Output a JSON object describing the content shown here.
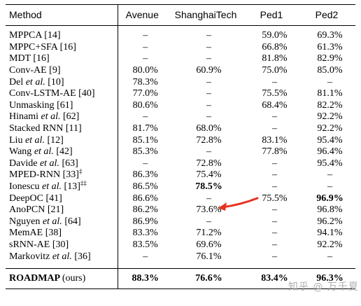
{
  "header": {
    "method": "Method",
    "avenue": "Avenue",
    "shanghaitech": "ShanghaiTech",
    "ped1": "Ped1",
    "ped2": "Ped2"
  },
  "rows": [
    {
      "name": "MPPCA",
      "etal": "",
      "ref": "[14]",
      "sup": "",
      "avenue": "–",
      "shanghaitech": "–",
      "ped1": "59.0%",
      "ped2": "69.3%"
    },
    {
      "name": "MPPC+SFA",
      "etal": "",
      "ref": "[16]",
      "sup": "",
      "avenue": "–",
      "shanghaitech": "–",
      "ped1": "66.8%",
      "ped2": "61.3%"
    },
    {
      "name": "MDT",
      "etal": "",
      "ref": "[16]",
      "sup": "",
      "avenue": "–",
      "shanghaitech": "–",
      "ped1": "81.8%",
      "ped2": "82.9%"
    },
    {
      "name": "Conv-AE",
      "etal": "",
      "ref": "[9]",
      "sup": "",
      "avenue": "80.0%",
      "shanghaitech": "60.9%",
      "ped1": "75.0%",
      "ped2": "85.0%"
    },
    {
      "name": "Del",
      "etal": "et al.",
      "ref": "[10]",
      "sup": "",
      "avenue": "78.3%",
      "shanghaitech": "–",
      "ped1": "–",
      "ped2": "–"
    },
    {
      "name": "Conv-LSTM-AE",
      "etal": "",
      "ref": "[40]",
      "sup": "",
      "avenue": "77.0%",
      "shanghaitech": "–",
      "ped1": "75.5%",
      "ped2": "81.1%"
    },
    {
      "name": "Unmasking",
      "etal": "",
      "ref": "[61]",
      "sup": "",
      "avenue": "80.6%",
      "shanghaitech": "–",
      "ped1": "68.4%",
      "ped2": "82.2%"
    },
    {
      "name": "Hinami",
      "etal": "et al.",
      "ref": "[62]",
      "sup": "",
      "avenue": "–",
      "shanghaitech": "–",
      "ped1": "–",
      "ped2": "92.2%"
    },
    {
      "name": "Stacked RNN",
      "etal": "",
      "ref": "[11]",
      "sup": "",
      "avenue": "81.7%",
      "shanghaitech": "68.0%",
      "ped1": "–",
      "ped2": "92.2%"
    },
    {
      "name": "Liu",
      "etal": "et al.",
      "ref": "[12]",
      "sup": "",
      "avenue": "85.1%",
      "shanghaitech": "72.8%",
      "ped1": "83.1%",
      "ped2": "95.4%"
    },
    {
      "name": "Wang",
      "etal": "et al.",
      "ref": "[42]",
      "sup": "",
      "avenue": "85.3%",
      "shanghaitech": "–",
      "ped1": "77.8%",
      "ped2": "96.4%"
    },
    {
      "name": "Davide",
      "etal": "et al.",
      "ref": "[63]",
      "sup": "",
      "avenue": "–",
      "shanghaitech": "72.8%",
      "ped1": "–",
      "ped2": "95.4%"
    },
    {
      "name": "MPED-RNN",
      "etal": "",
      "ref": "[33]",
      "sup": "‡",
      "avenue": "86.3%",
      "shanghaitech": "75.4%",
      "ped1": "–",
      "ped2": "–"
    },
    {
      "name": "Ionescu",
      "etal": "et al.",
      "ref": "[13]",
      "sup": "‡‡",
      "avenue": "86.5%",
      "shanghaitech": "78.5%",
      "ped1": "–",
      "ped2": "–"
    },
    {
      "name": "DeepOC",
      "etal": "",
      "ref": "[41]",
      "sup": "",
      "avenue": "86.6%",
      "shanghaitech": "–",
      "ped1": "75.5%",
      "ped2": "96.9%"
    },
    {
      "name": "AnoPCN",
      "etal": "",
      "ref": "[21]",
      "sup": "",
      "avenue": "86.2%",
      "shanghaitech": "73.6%",
      "ped1": "–",
      "ped2": "96.8%"
    },
    {
      "name": "Nguyen",
      "etal": "et al.",
      "ref": "[64]",
      "sup": "",
      "avenue": "86.9%",
      "shanghaitech": "–",
      "ped1": "–",
      "ped2": "96.2%"
    },
    {
      "name": "MemAE",
      "etal": "",
      "ref": "[38]",
      "sup": "",
      "avenue": "83.3%",
      "shanghaitech": "71.2%",
      "ped1": "–",
      "ped2": "94.1%"
    },
    {
      "name": "sRNN-AE",
      "etal": "",
      "ref": "[30]",
      "sup": "",
      "avenue": "83.5%",
      "shanghaitech": "69.6%",
      "ped1": "–",
      "ped2": "92.2%"
    },
    {
      "name": "Markovitz",
      "etal": "et al.",
      "ref": "[36]",
      "sup": "",
      "avenue": "–",
      "shanghaitech": "76.1%",
      "ped1": "–",
      "ped2": "–"
    }
  ],
  "final": {
    "name": "ROADMAP",
    "suffix": "(ours)",
    "avenue": "88.3%",
    "shanghaitech": "76.6%",
    "ped1": "83.4%",
    "ped2": "96.3%"
  },
  "watermark": "知乎 @ 万千夏",
  "arrow_color": "#e8311f"
}
